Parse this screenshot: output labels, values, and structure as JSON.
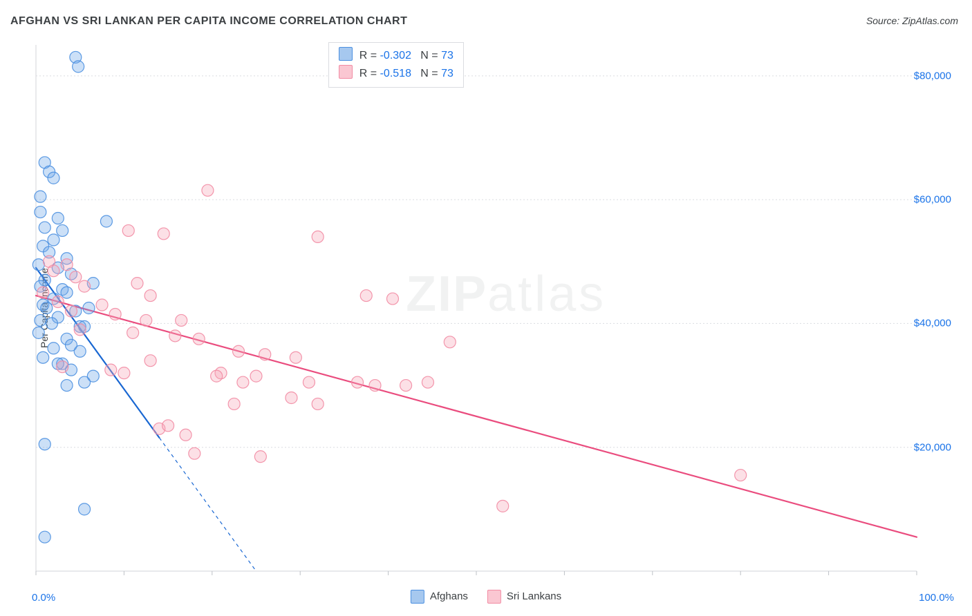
{
  "title": "AFGHAN VS SRI LANKAN PER CAPITA INCOME CORRELATION CHART",
  "source": "Source: ZipAtlas.com",
  "ylabel": "Per Capita Income",
  "watermark_bold": "ZIP",
  "watermark_light": "atlas",
  "chart": {
    "type": "scatter",
    "background_color": "#ffffff",
    "grid_color": "#dadce0",
    "grid_dash": "2,3",
    "axis_color": "#dadce0",
    "tick_color": "#bdc1c6",
    "xlim": [
      0,
      100
    ],
    "ylim": [
      0,
      85000
    ],
    "xtick_step": 10,
    "ytick_values": [
      20000,
      40000,
      60000,
      80000
    ],
    "ytick_labels": [
      "$20,000",
      "$40,000",
      "$60,000",
      "$80,000"
    ],
    "xaxis_start_label": "0.0%",
    "xaxis_end_label": "100.0%",
    "marker_radius": 8.5,
    "marker_fill_opacity": 0.35,
    "marker_stroke_width": 1.2,
    "line_width": 2.2,
    "series": [
      {
        "name": "Afghans",
        "color": "#6da6e8",
        "stroke": "#4a8fe0",
        "line_color": "#1967d2",
        "stats": {
          "R": "-0.302",
          "N": "73"
        },
        "regression": {
          "x1": 0,
          "y1": 49000,
          "x2": 25,
          "y2": 0,
          "dash_after_x": 14
        },
        "points": [
          [
            4.5,
            83000
          ],
          [
            4.8,
            81500
          ],
          [
            1.0,
            66000
          ],
          [
            1.5,
            64500
          ],
          [
            2.0,
            63500
          ],
          [
            0.5,
            60500
          ],
          [
            0.5,
            58000
          ],
          [
            2.5,
            57000
          ],
          [
            1.0,
            55500
          ],
          [
            3.0,
            55000
          ],
          [
            8.0,
            56500
          ],
          [
            2.0,
            53500
          ],
          [
            0.8,
            52500
          ],
          [
            1.5,
            51500
          ],
          [
            3.5,
            50500
          ],
          [
            0.3,
            49500
          ],
          [
            2.5,
            49000
          ],
          [
            4.0,
            48000
          ],
          [
            1.0,
            47000
          ],
          [
            0.5,
            46000
          ],
          [
            6.5,
            46500
          ],
          [
            3.0,
            45500
          ],
          [
            3.5,
            45000
          ],
          [
            2.0,
            44000
          ],
          [
            0.8,
            43000
          ],
          [
            1.2,
            42500
          ],
          [
            4.5,
            42000
          ],
          [
            6.0,
            42500
          ],
          [
            2.5,
            41000
          ],
          [
            0.5,
            40500
          ],
          [
            1.8,
            40000
          ],
          [
            5.0,
            39500
          ],
          [
            5.5,
            39500
          ],
          [
            0.3,
            38500
          ],
          [
            3.5,
            37500
          ],
          [
            4.0,
            36500
          ],
          [
            2.0,
            36000
          ],
          [
            5.0,
            35500
          ],
          [
            0.8,
            34500
          ],
          [
            3.0,
            33500
          ],
          [
            2.5,
            33500
          ],
          [
            4.0,
            32500
          ],
          [
            6.5,
            31500
          ],
          [
            5.5,
            30500
          ],
          [
            3.5,
            30000
          ],
          [
            1.0,
            20500
          ],
          [
            5.5,
            10000
          ],
          [
            1.0,
            5500
          ]
        ]
      },
      {
        "name": "Sri Lankans",
        "color": "#f7a7b8",
        "stroke": "#f28ba3",
        "line_color": "#ea4c7e",
        "stats": {
          "R": "-0.518",
          "N": "73"
        },
        "regression": {
          "x1": 0,
          "y1": 44500,
          "x2": 100,
          "y2": 5500,
          "dash_after_x": 100
        },
        "points": [
          [
            19.5,
            61500
          ],
          [
            10.5,
            55000
          ],
          [
            14.5,
            54500
          ],
          [
            32.0,
            54000
          ],
          [
            1.5,
            50000
          ],
          [
            3.5,
            49500
          ],
          [
            2.0,
            48500
          ],
          [
            4.5,
            47500
          ],
          [
            11.5,
            46500
          ],
          [
            5.5,
            46000
          ],
          [
            0.8,
            45000
          ],
          [
            13.0,
            44500
          ],
          [
            37.5,
            44500
          ],
          [
            40.5,
            44000
          ],
          [
            2.5,
            43500
          ],
          [
            7.5,
            43000
          ],
          [
            4.0,
            42000
          ],
          [
            9.0,
            41500
          ],
          [
            12.5,
            40500
          ],
          [
            16.5,
            40500
          ],
          [
            5.0,
            39000
          ],
          [
            11.0,
            38500
          ],
          [
            15.8,
            38000
          ],
          [
            18.5,
            37500
          ],
          [
            47.0,
            37000
          ],
          [
            23.0,
            35500
          ],
          [
            26.0,
            35000
          ],
          [
            29.5,
            34500
          ],
          [
            13.0,
            34000
          ],
          [
            3.0,
            33000
          ],
          [
            8.5,
            32500
          ],
          [
            10.0,
            32000
          ],
          [
            21.0,
            32000
          ],
          [
            20.5,
            31500
          ],
          [
            25.0,
            31500
          ],
          [
            23.5,
            30500
          ],
          [
            31.0,
            30500
          ],
          [
            36.5,
            30500
          ],
          [
            38.5,
            30000
          ],
          [
            42.0,
            30000
          ],
          [
            44.5,
            30500
          ],
          [
            29.0,
            28000
          ],
          [
            22.5,
            27000
          ],
          [
            32.0,
            27000
          ],
          [
            14.0,
            23000
          ],
          [
            15.0,
            23500
          ],
          [
            17.0,
            22000
          ],
          [
            18.0,
            19000
          ],
          [
            25.5,
            18500
          ],
          [
            80.0,
            15500
          ],
          [
            53.0,
            10500
          ]
        ]
      }
    ]
  },
  "legend": {
    "items": [
      {
        "label": "Afghans",
        "fill": "#a6c8ef",
        "border": "#4a8fe0"
      },
      {
        "label": "Sri Lankans",
        "fill": "#fac7d2",
        "border": "#f28ba3"
      }
    ]
  },
  "statbox": {
    "rows": [
      {
        "fill": "#a6c8ef",
        "border": "#4a8fe0",
        "R_label": "R = ",
        "R": "-0.302",
        "N_label": "N = ",
        "N": "73"
      },
      {
        "fill": "#fac7d2",
        "border": "#f28ba3",
        "R_label": "R = ",
        "R": "-0.518",
        "N_label": "N = ",
        "N": "73"
      }
    ]
  },
  "colors": {
    "title_text": "#3c4043",
    "axis_text": "#1a73e8"
  }
}
